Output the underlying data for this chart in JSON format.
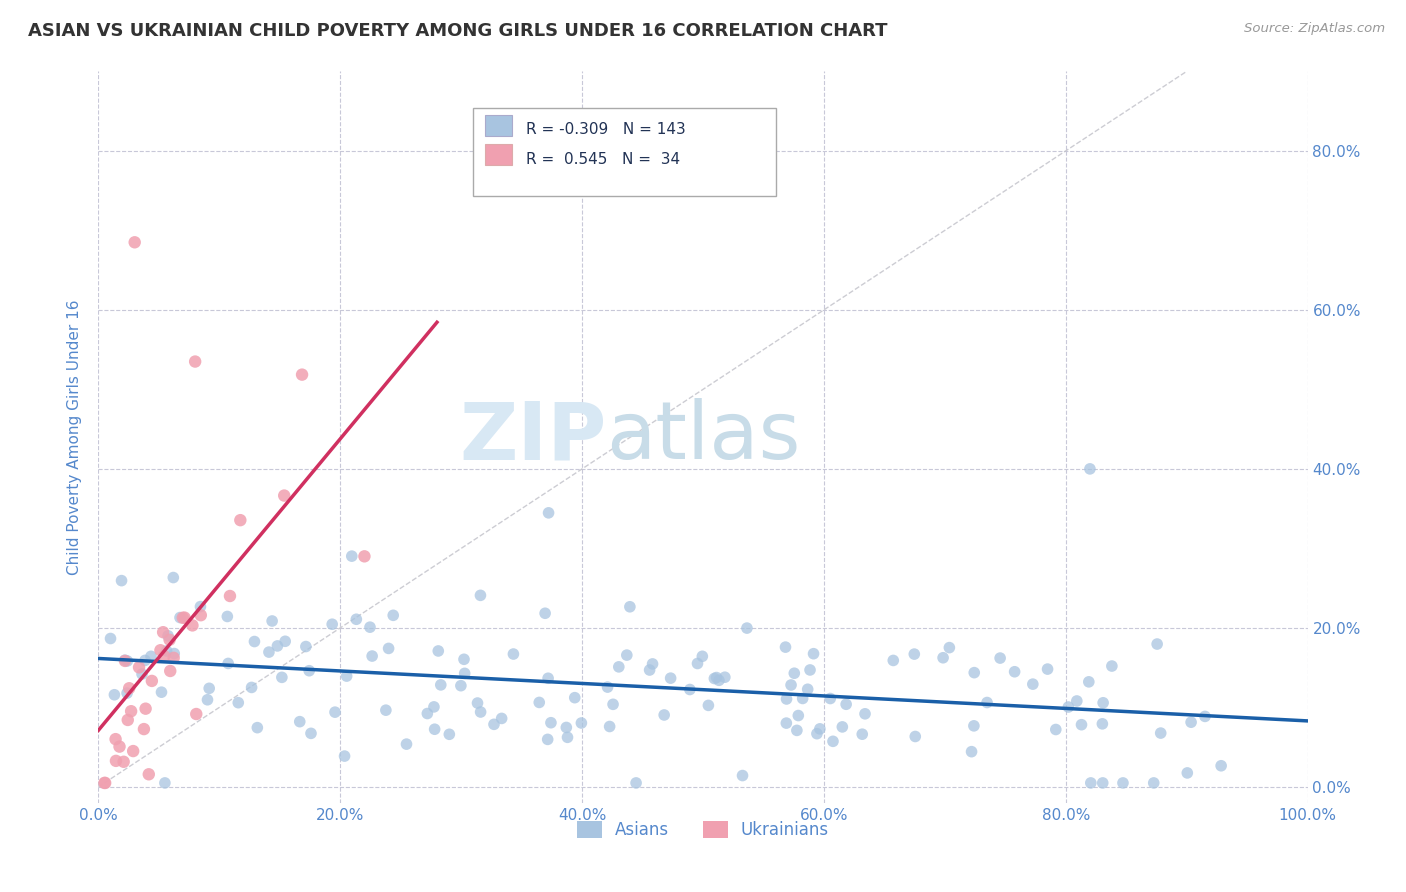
{
  "title": "ASIAN VS UKRAINIAN CHILD POVERTY AMONG GIRLS UNDER 16 CORRELATION CHART",
  "source": "Source: ZipAtlas.com",
  "ylabel": "Child Poverty Among Girls Under 16",
  "xlim": [
    0.0,
    1.0
  ],
  "ylim": [
    -0.02,
    0.9
  ],
  "yticks": [
    0.0,
    0.2,
    0.4,
    0.6,
    0.8
  ],
  "xticks": [
    0.0,
    0.2,
    0.4,
    0.6,
    0.8,
    1.0
  ],
  "xtick_labels": [
    "0.0%",
    "20.0%",
    "40.0%",
    "60.0%",
    "80.0%",
    "100.0%"
  ],
  "ytick_labels": [
    "0.0%",
    "20.0%",
    "40.0%",
    "60.0%",
    "80.0%"
  ],
  "asian_R": -0.309,
  "asian_N": 143,
  "ukrainian_R": 0.545,
  "ukrainian_N": 34,
  "asian_color": "#a8c4e0",
  "ukrainian_color": "#f0a0b0",
  "asian_line_color": "#1a5fa8",
  "ukrainian_line_color": "#d03060",
  "background_color": "#ffffff",
  "axis_color": "#5588cc",
  "grid_color": "#c8c8d8",
  "watermark_zip": "ZIP",
  "watermark_atlas": "atlas",
  "watermark_color": "#d8e8f4",
  "seed": 12345
}
